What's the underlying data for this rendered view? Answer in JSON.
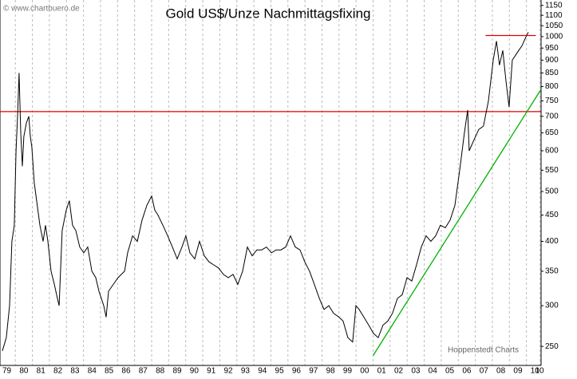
{
  "chart_data": {
    "type": "line",
    "title": "Gold US$/Unze Nachmittagsfixing",
    "watermark": "© www.chartbuero.de",
    "source": "Hoppenstedt Charts",
    "log_scale": true,
    "x_grid": true,
    "line_color": "#000000",
    "xlim": [
      1979.1,
      2010.86
    ],
    "ylim": [
      229.6,
      1178
    ],
    "yticks": [
      250,
      300,
      350,
      400,
      450,
      500,
      550,
      600,
      650,
      700,
      750,
      800,
      850,
      900,
      950,
      1000,
      1050,
      1100,
      1150
    ],
    "xticks": [
      {
        "value": 1979,
        "label": "79"
      },
      {
        "value": 1980,
        "label": "80"
      },
      {
        "value": 1981,
        "label": "81"
      },
      {
        "value": 1982,
        "label": "82"
      },
      {
        "value": 1983,
        "label": "83"
      },
      {
        "value": 1984,
        "label": "84"
      },
      {
        "value": 1985,
        "label": "85"
      },
      {
        "value": 1986,
        "label": "86"
      },
      {
        "value": 1987,
        "label": "87"
      },
      {
        "value": 1988,
        "label": "88"
      },
      {
        "value": 1989,
        "label": "89"
      },
      {
        "value": 1990,
        "label": "90"
      },
      {
        "value": 1991,
        "label": "91"
      },
      {
        "value": 1992,
        "label": "92"
      },
      {
        "value": 1993,
        "label": "93"
      },
      {
        "value": 1994,
        "label": "94"
      },
      {
        "value": 1995,
        "label": "95"
      },
      {
        "value": 1996,
        "label": "96"
      },
      {
        "value": 1997,
        "label": "97"
      },
      {
        "value": 1998,
        "label": "98"
      },
      {
        "value": 1999,
        "label": "99"
      },
      {
        "value": 2000,
        "label": "00"
      },
      {
        "value": 2001,
        "label": "01"
      },
      {
        "value": 2002,
        "label": "02"
      },
      {
        "value": 2003,
        "label": "03"
      },
      {
        "value": 2004,
        "label": "04"
      },
      {
        "value": 2005,
        "label": "05"
      },
      {
        "value": 2006,
        "label": "06"
      },
      {
        "value": 2007,
        "label": "07"
      },
      {
        "value": 2008,
        "label": "08"
      },
      {
        "value": 2009,
        "label": "09"
      },
      {
        "value": 2010,
        "label": "10"
      },
      {
        "value": 2010.8,
        "label": "10"
      }
    ],
    "x": [
      1979.24,
      1979.47,
      1979.66,
      1979.8,
      1979.94,
      1980.04,
      1980.13,
      1980.22,
      1980.32,
      1980.41,
      1980.5,
      1980.65,
      1980.79,
      1980.88,
      1980.97,
      1981.11,
      1981.25,
      1981.44,
      1981.63,
      1981.77,
      1981.91,
      1982.1,
      1982.29,
      1982.47,
      1982.57,
      1982.75,
      1982.99,
      1983.17,
      1983.36,
      1983.55,
      1983.78,
      1984.02,
      1984.25,
      1984.49,
      1984.72,
      1984.91,
      1985.19,
      1985.33,
      1985.47,
      1985.75,
      1986.03,
      1986.22,
      1986.41,
      1986.59,
      1986.88,
      1987.16,
      1987.44,
      1987.72,
      1988.0,
      1988.19,
      1988.37,
      1988.66,
      1988.94,
      1989.22,
      1989.5,
      1989.78,
      1990.01,
      1990.25,
      1990.53,
      1990.81,
      1991.09,
      1991.37,
      1991.65,
      1991.93,
      1992.21,
      1992.5,
      1992.78,
      1993.06,
      1993.34,
      1993.62,
      1993.9,
      1994.18,
      1994.46,
      1994.74,
      1995.03,
      1995.31,
      1995.59,
      1995.87,
      1996.15,
      1996.43,
      1996.71,
      1996.99,
      1997.27,
      1997.55,
      1997.84,
      1998.12,
      1998.4,
      1998.68,
      1999.0,
      1999.24,
      1999.52,
      1999.8,
      1999.99,
      2000.18,
      2000.46,
      2000.74,
      2001.02,
      2001.3,
      2001.58,
      2001.86,
      2002.14,
      2002.43,
      2002.71,
      2002.99,
      2003.27,
      2003.55,
      2003.83,
      2004.11,
      2004.39,
      2004.67,
      2004.95,
      2005.24,
      2005.52,
      2005.8,
      2006.08,
      2006.36,
      2006.55,
      2006.64,
      2006.92,
      2007.2,
      2007.48,
      2007.77,
      2008.05,
      2008.24,
      2008.42,
      2008.61,
      2008.8,
      2008.98,
      2009.17,
      2009.36,
      2009.55,
      2009.74,
      2009.92,
      2010.11
    ],
    "values": [
      245,
      260,
      300,
      400,
      430,
      600,
      700,
      850,
      650,
      560,
      640,
      680,
      700,
      640,
      610,
      520,
      480,
      430,
      400,
      430,
      400,
      350,
      330,
      310,
      300,
      420,
      460,
      480,
      430,
      420,
      390,
      380,
      390,
      350,
      340,
      320,
      300,
      285,
      320,
      330,
      340,
      345,
      350,
      380,
      410,
      400,
      440,
      470,
      490,
      460,
      450,
      430,
      410,
      390,
      370,
      390,
      410,
      380,
      370,
      400,
      375,
      365,
      360,
      355,
      345,
      340,
      345,
      330,
      350,
      390,
      375,
      385,
      385,
      390,
      380,
      385,
      385,
      390,
      410,
      390,
      385,
      365,
      350,
      330,
      310,
      295,
      300,
      290,
      285,
      280,
      260,
      255,
      300,
      295,
      285,
      275,
      265,
      260,
      275,
      280,
      290,
      310,
      315,
      340,
      335,
      360,
      390,
      410,
      400,
      410,
      430,
      425,
      440,
      470,
      550,
      650,
      720,
      600,
      630,
      660,
      670,
      750,
      900,
      980,
      880,
      940,
      820,
      730,
      900,
      920,
      940,
      960,
      990,
      1020
    ],
    "reference_lines": [
      {
        "value": 715,
        "color": "#e00000"
      }
    ],
    "segments": [
      {
        "x": [
          2007.6,
          2010.55
        ],
        "values": [
          1005,
          1005
        ],
        "color": "#e00000"
      },
      {
        "x": [
          2001.0,
          2010.86
        ],
        "values": [
          240,
          790
        ],
        "color": "#00b000"
      }
    ]
  }
}
